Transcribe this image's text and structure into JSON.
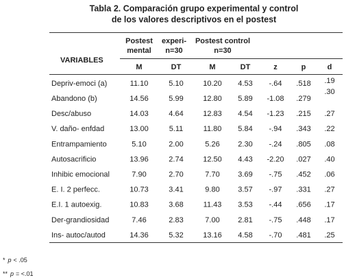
{
  "title": [
    "Tabla 2. Comparación grupo experimental y control",
    "de los valores descriptivos en el postest"
  ],
  "table": {
    "variables_header": "VARIABLES",
    "group_header": [
      [
        "Postest",
        "mental"
      ],
      [
        "experi-",
        "n=30"
      ],
      [
        "Postest control",
        "n=30"
      ]
    ],
    "columns": [
      "M",
      "DT",
      "M",
      "DT",
      "z",
      "p",
      "d"
    ],
    "rows": [
      [
        "Depriv-emoci (a)",
        "11.10",
        "5.10",
        "10.20",
        "4.53",
        "-.64",
        ".518",
        ".19"
      ],
      [
        "Abandono  (b)",
        "14.56",
        "5.99",
        "12.80",
        "5.89",
        "-1.08",
        ".279",
        ".30"
      ],
      [
        "Desc/abuso",
        "14.03",
        "4.64",
        "12.83",
        "4.54",
        "-1.23",
        ".215",
        ".27"
      ],
      [
        "V. daño- enfdad",
        "13.00",
        "5.11",
        "11.80",
        "5.84",
        "-.94",
        ".343",
        ".22"
      ],
      [
        "Entrampamiento",
        "5.10",
        "2.00",
        "5.26",
        "2.30",
        "-.24",
        ".805",
        ".08"
      ],
      [
        "Autosacrificio",
        "13.96",
        "2.74",
        "12.50",
        "4.43",
        "-2.20",
        ".027",
        ".40"
      ],
      [
        "Inhibic emocional",
        "7.90",
        "2.70",
        "7.70",
        "3.69",
        "-.75",
        ".452",
        ".06"
      ],
      [
        "E. I. 2 perfecc.",
        "10.73",
        "3.41",
        "9.80",
        "3.57",
        "-.97",
        ".331",
        ".27"
      ],
      [
        "E.I. 1 autoexig.",
        "10.83",
        "3.68",
        "11.43",
        "3.53",
        "-.44",
        ".656",
        ".17"
      ],
      [
        "Der-grandiosidad",
        "7.46",
        "2.83",
        "7.00",
        "2.81",
        "-.75",
        ".448",
        ".17"
      ],
      [
        "Ins- autoc/autod",
        "14.36",
        "5.32",
        "13.16",
        "4.58",
        "-.70",
        ".481",
        ".25"
      ]
    ]
  },
  "notes": [
    {
      "mark": "*",
      "var": "p",
      "text": "< .05"
    },
    {
      "mark": "**",
      "var": "p",
      "text": "= <.01"
    }
  ]
}
